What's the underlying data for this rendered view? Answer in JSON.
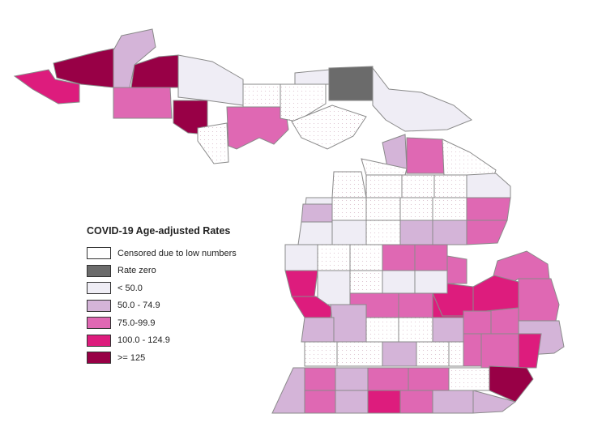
{
  "legend": {
    "title": "COVID-19 Age-adjusted Rates",
    "items": [
      {
        "label": "Censored due to low numbers",
        "color": "#ffffff"
      },
      {
        "label": "Rate zero",
        "color": "#6b6b6b"
      },
      {
        "label": "< 50.0",
        "color": "#efedf5"
      },
      {
        "label": "50.0 - 74.9",
        "color": "#d4b4d8"
      },
      {
        "label": "75.0-99.9",
        "color": "#df68b3"
      },
      {
        "label": "100.0 - 124.9",
        "color": "#dd1c7d"
      },
      {
        "label": ">= 125",
        "color": "#980046"
      }
    ]
  },
  "map": {
    "region": "Michigan",
    "unit": "county",
    "classes": [
      "censored",
      "zero",
      "lt50",
      "c50_75",
      "c75_100",
      "c100_125",
      "ge125"
    ]
  }
}
